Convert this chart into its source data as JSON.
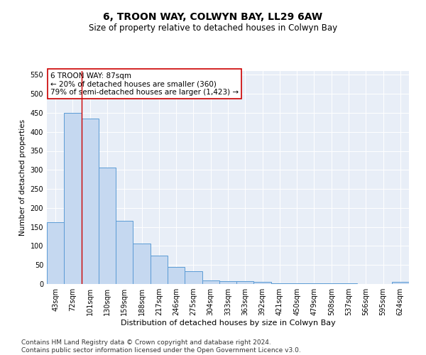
{
  "title": "6, TROON WAY, COLWYN BAY, LL29 6AW",
  "subtitle": "Size of property relative to detached houses in Colwyn Bay",
  "xlabel": "Distribution of detached houses by size in Colwyn Bay",
  "ylabel": "Number of detached properties",
  "categories": [
    "43sqm",
    "72sqm",
    "101sqm",
    "130sqm",
    "159sqm",
    "188sqm",
    "217sqm",
    "246sqm",
    "275sqm",
    "304sqm",
    "333sqm",
    "363sqm",
    "392sqm",
    "421sqm",
    "450sqm",
    "479sqm",
    "508sqm",
    "537sqm",
    "566sqm",
    "595sqm",
    "624sqm"
  ],
  "values": [
    163,
    450,
    435,
    307,
    166,
    106,
    74,
    45,
    33,
    10,
    8,
    8,
    5,
    2,
    2,
    1,
    1,
    1,
    0,
    0,
    5
  ],
  "bar_color": "#c5d8f0",
  "bar_edge_color": "#5b9bd5",
  "vline_x": 1.5,
  "vline_color": "#cc0000",
  "annotation_line1": "6 TROON WAY: 87sqm",
  "annotation_line2": "← 20% of detached houses are smaller (360)",
  "annotation_line3": "79% of semi-detached houses are larger (1,423) →",
  "annotation_box_color": "#ffffff",
  "annotation_box_edge": "#cc0000",
  "ylim": [
    0,
    560
  ],
  "yticks": [
    0,
    50,
    100,
    150,
    200,
    250,
    300,
    350,
    400,
    450,
    500,
    550
  ],
  "plot_bg_color": "#e8eef7",
  "footer": "Contains HM Land Registry data © Crown copyright and database right 2024.\nContains public sector information licensed under the Open Government Licence v3.0.",
  "title_fontsize": 10,
  "subtitle_fontsize": 8.5,
  "xlabel_fontsize": 8,
  "ylabel_fontsize": 7.5,
  "tick_fontsize": 7,
  "annotation_fontsize": 7.5,
  "footer_fontsize": 6.5
}
